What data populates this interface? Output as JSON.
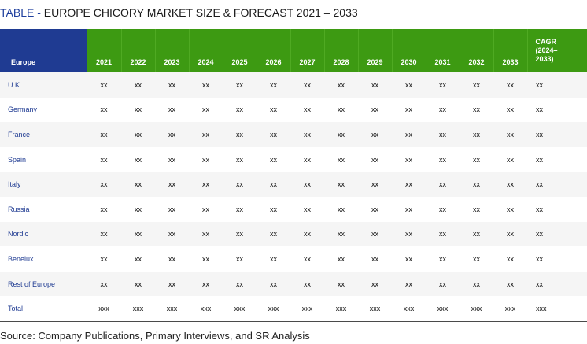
{
  "title": {
    "prefix": "TABLE - ",
    "text": "EUROPE CHICORY MARKET SIZE & FORECAST 2021 – 2033"
  },
  "table": {
    "region_header": "Europe",
    "years": [
      "2021",
      "2022",
      "2023",
      "2024",
      "2025",
      "2026",
      "2027",
      "2028",
      "2029",
      "2030",
      "2031",
      "2032",
      "2033"
    ],
    "cagr_header": [
      "CAGR",
      "(2024–",
      "2033)"
    ],
    "rows": [
      {
        "region": "U.K.",
        "values": [
          "xx",
          "xx",
          "xx",
          "xx",
          "xx",
          "xx",
          "xx",
          "xx",
          "xx",
          "xx",
          "xx",
          "xx",
          "xx"
        ],
        "cagr": "xx"
      },
      {
        "region": "Germany",
        "values": [
          "xx",
          "xx",
          "xx",
          "xx",
          "xx",
          "xx",
          "xx",
          "xx",
          "xx",
          "xx",
          "xx",
          "xx",
          "xx"
        ],
        "cagr": "xx"
      },
      {
        "region": "France",
        "values": [
          "xx",
          "xx",
          "xx",
          "xx",
          "xx",
          "xx",
          "xx",
          "xx",
          "xx",
          "xx",
          "xx",
          "xx",
          "xx"
        ],
        "cagr": "xx"
      },
      {
        "region": "Spain",
        "values": [
          "xx",
          "xx",
          "xx",
          "xx",
          "xx",
          "xx",
          "xx",
          "xx",
          "xx",
          "xx",
          "xx",
          "xx",
          "xx"
        ],
        "cagr": "xx"
      },
      {
        "region": "Italy",
        "values": [
          "xx",
          "xx",
          "xx",
          "xx",
          "xx",
          "xx",
          "xx",
          "xx",
          "xx",
          "xx",
          "xx",
          "xx",
          "xx"
        ],
        "cagr": "xx"
      },
      {
        "region": "Russia",
        "values": [
          "xx",
          "xx",
          "xx",
          "xx",
          "xx",
          "xx",
          "xx",
          "xx",
          "xx",
          "xx",
          "xx",
          "xx",
          "xx"
        ],
        "cagr": "xx"
      },
      {
        "region": "Nordic",
        "values": [
          "xx",
          "xx",
          "xx",
          "xx",
          "xx",
          "xx",
          "xx",
          "xx",
          "xx",
          "xx",
          "xx",
          "xx",
          "xx"
        ],
        "cagr": "xx"
      },
      {
        "region": "Benelux",
        "values": [
          "xx",
          "xx",
          "xx",
          "xx",
          "xx",
          "xx",
          "xx",
          "xx",
          "xx",
          "xx",
          "xx",
          "xx",
          "xx"
        ],
        "cagr": "xx"
      },
      {
        "region": "Rest of Europe",
        "values": [
          "xx",
          "xx",
          "xx",
          "xx",
          "xx",
          "xx",
          "xx",
          "xx",
          "xx",
          "xx",
          "xx",
          "xx",
          "xx"
        ],
        "cagr": "xx"
      },
      {
        "region": "Total",
        "values": [
          "xxx",
          "xxx",
          "xxx",
          "xxx",
          "xxx",
          "xxx",
          "xxx",
          "xxx",
          "xxx",
          "xxx",
          "xxx",
          "xxx",
          "xxx"
        ],
        "cagr": "xxx"
      }
    ]
  },
  "source": "Source: Company Publications, Primary Interviews, and SR Analysis",
  "colors": {
    "region_header_bg": "#1f3b92",
    "year_header_bg": "#3d9a12",
    "region_text": "#1f3b92",
    "title_prefix": "#1f3f9e"
  }
}
